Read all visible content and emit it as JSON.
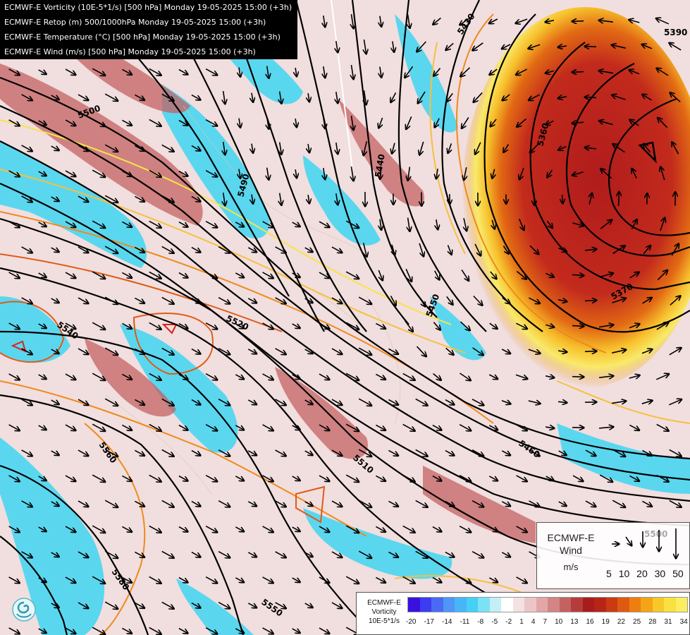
{
  "header": {
    "lines": [
      "ECMWF-E Vorticity (10E-5*1/s) [500 hPa] Monday 19-05-2025 15:00 (+3h)",
      "ECMWF-E Retop (m) 500/1000hPa Monday 19-05-2025 15:00 (+3h)",
      "ECMWF-E Temperature (°C) [500 hPa] Monday 19-05-2025 15:00 (+3h)",
      "ECMWF-E Wind (m/s) [500 hPa] Monday 19-05-2025 15:00 (+3h)"
    ]
  },
  "contour_labels": [
    "5430",
    "5390",
    "5500",
    "5490",
    "5440",
    "5360",
    "5540",
    "5520",
    "5450",
    "5370",
    "5560",
    "5460",
    "5510",
    "5580",
    "5550",
    "5500"
  ],
  "wind_legend": {
    "title_line1": "ECMWF-E",
    "title_line2": "Wind",
    "unit": "m/s",
    "speeds": [
      "5",
      "10",
      "20",
      "30",
      "50"
    ],
    "bg_label": "5500"
  },
  "vorticity_legend": {
    "title_line1": "ECMWF-E",
    "title_line2": "Vorticity",
    "title_line3": "10E-5*1/s",
    "ticks": [
      "-20",
      "-17",
      "-14",
      "-11",
      "-8",
      "-5",
      "-2",
      "1",
      "4",
      "7",
      "10",
      "13",
      "16",
      "19",
      "22",
      "25",
      "28",
      "31",
      "34"
    ],
    "colors": [
      "#3a10e0",
      "#3c3cf0",
      "#4a6af5",
      "#4f96f8",
      "#46b6f8",
      "#45d0f6",
      "#7be2f6",
      "#c4eff6",
      "#ffffff",
      "#f4e2e2",
      "#ecc6c6",
      "#e2a6a6",
      "#d48484",
      "#c46262",
      "#b63c3c",
      "#a81c1c",
      "#b82418",
      "#cc3a12",
      "#de5a10",
      "#ee7e10",
      "#f5a418",
      "#f8c828",
      "#fae040",
      "#fbee60"
    ]
  },
  "colors": {
    "cyan": "#3fd6f2",
    "blue": "#3cb8f0",
    "pink": "#ecc8c8",
    "red": "#c24040",
    "darkred": "#a81c1c",
    "orange": "#ef8a1c",
    "yellow": "#f7e448",
    "contour": "#000000"
  },
  "icons": {
    "logo": "swirl-logo-icon"
  }
}
